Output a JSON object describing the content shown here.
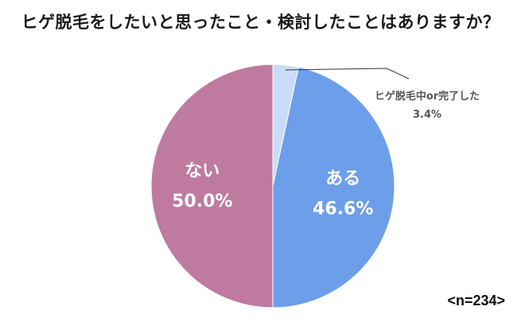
{
  "chart_data": {
    "type": "pie",
    "title": "ヒゲ脱毛をしたいと思ったこと・検討したことはありますか？",
    "slices": [
      {
        "label": "ヒゲ脱毛中or完了した",
        "value_text": "3.4%",
        "value": 3.4,
        "color": "#c9dcf7",
        "label_placement": "outside"
      },
      {
        "label": "ある",
        "value_text": "46.6%",
        "value": 46.6,
        "color": "#6c9eea",
        "label_placement": "inside"
      },
      {
        "label": "ない",
        "value_text": "50.0%",
        "value": 50.0,
        "color": "#bf7aa0",
        "label_placement": "inside"
      }
    ],
    "sample_size": "<n=234>"
  }
}
